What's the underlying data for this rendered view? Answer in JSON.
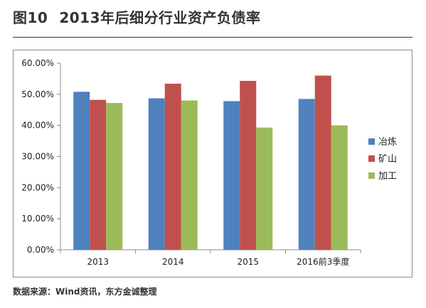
{
  "header": {
    "figure_no": "图10",
    "title": "2013年后细分行业资产负债率"
  },
  "footer": {
    "source": "数据来源：Wind资讯，东方金诚整理"
  },
  "chart_data": {
    "type": "bar",
    "title": "",
    "xlabel": "",
    "ylabel": "",
    "categories": [
      "2013",
      "2014",
      "2015",
      "2016前3季度"
    ],
    "series": [
      {
        "name": "冶炼",
        "color": "#4f81bd",
        "values": [
          50.8,
          48.7,
          47.8,
          48.5
        ]
      },
      {
        "name": "矿山",
        "color": "#c0504d",
        "values": [
          48.2,
          53.4,
          54.3,
          56.0
        ]
      },
      {
        "name": "加工",
        "color": "#9bbb59",
        "values": [
          47.2,
          48.0,
          39.3,
          40.0
        ]
      }
    ],
    "ylim": [
      0,
      60
    ],
    "yticks": [
      "0.00%",
      "10.00%",
      "20.00%",
      "30.00%",
      "40.00%",
      "50.00%",
      "60.00%"
    ],
    "grid": false,
    "legend_position": "right"
  }
}
